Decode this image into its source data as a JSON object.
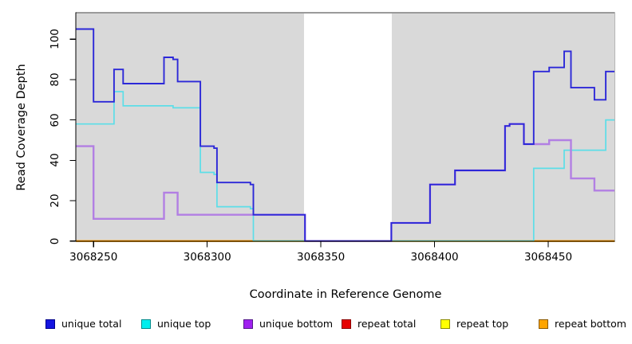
{
  "figure": {
    "title": "",
    "y_axis": {
      "label": "Read Coverage Depth",
      "ticks": [
        0,
        20,
        40,
        60,
        80,
        100
      ]
    },
    "x_axis": {
      "label": "Coordinate in Reference Genome",
      "ticks": [
        3068250,
        3068300,
        3068350,
        3068400,
        3068450
      ]
    },
    "legend": [
      {
        "label": "unique total",
        "fill": "#1414E0",
        "border": "#00008B"
      },
      {
        "label": "unique top",
        "fill": "#00EEEE",
        "border": "#008B8B"
      },
      {
        "label": "unique bottom",
        "fill": "#A020F0",
        "border": "#551A8B"
      },
      {
        "label": "repeat total",
        "fill": "#E60000",
        "border": "#8B0000"
      },
      {
        "label": "repeat top",
        "fill": "#FFFF00",
        "border": "#8B8B00"
      },
      {
        "label": "repeat bottom",
        "fill": "#FFA500",
        "border": "#8B5A00"
      }
    ]
  },
  "chart_data": {
    "type": "line",
    "subtype": "step",
    "title": "",
    "xlabel": "Coordinate in Reference Genome",
    "ylabel": "Read Coverage Depth",
    "xlim": [
      3068242.2,
      3068479.3
    ],
    "ylim": [
      0,
      113.3
    ],
    "panel_bg": "#D9D9D9",
    "page_bg": "#FFFFFF",
    "grid": "off",
    "legend_position": "bottom",
    "gap_region": {
      "x_start": 3068342.5,
      "x_end": 3068381.2,
      "color": "#FFFFFF",
      "note": "white no-data band over panel"
    },
    "series": [
      {
        "name": "repeat total",
        "color": "#E60000",
        "w": 2,
        "points": [
          [
            3068242.2,
            0
          ]
        ]
      },
      {
        "name": "repeat top",
        "color": "#FFFF00",
        "w": 2,
        "points": [
          [
            3068242.2,
            0
          ]
        ]
      },
      {
        "name": "repeat bottom",
        "color": "#FF9800",
        "w": 2.2,
        "points": [
          [
            3068242.2,
            0
          ]
        ]
      },
      {
        "name": "zero-overlap-blend",
        "color": "#8CC98A",
        "w": 1.8,
        "x_end": 3068443.6,
        "points": [
          [
            3068320.3,
            0
          ]
        ],
        "note": "cyan-at-zero over orange blend segment"
      },
      {
        "name": "unique top",
        "color": "#5CDEE8",
        "w": 1.7,
        "points": [
          [
            3068242.2,
            58
          ],
          [
            3068259,
            74
          ],
          [
            3068263,
            67
          ],
          [
            3068285,
            66
          ],
          [
            3068297,
            34
          ],
          [
            3068303,
            33
          ],
          [
            3068304.3,
            17
          ],
          [
            3068319,
            16
          ],
          [
            3068320.3,
            0
          ],
          [
            3068443.6,
            36
          ],
          [
            3068457,
            45
          ],
          [
            3068475.3,
            60
          ]
        ]
      },
      {
        "name": "unique bottom",
        "color": "#B27FE3",
        "w": 2.4,
        "points": [
          [
            3068242.2,
            47
          ],
          [
            3068250,
            11
          ],
          [
            3068281,
            24
          ],
          [
            3068287,
            13
          ],
          [
            3068343,
            0
          ],
          [
            3068381,
            9
          ],
          [
            3068398,
            28
          ],
          [
            3068409,
            35
          ],
          [
            3068431,
            57
          ],
          [
            3068433,
            58
          ],
          [
            3068439.3,
            48
          ],
          [
            3068450.4,
            50
          ],
          [
            3068460,
            31
          ],
          [
            3068470.3,
            25
          ]
        ]
      },
      {
        "name": "unique total",
        "color": "#2C28D8",
        "w": 1.9,
        "points": [
          [
            3068242.2,
            105
          ],
          [
            3068250,
            69
          ],
          [
            3068259,
            85
          ],
          [
            3068263,
            78
          ],
          [
            3068281,
            91
          ],
          [
            3068285,
            90
          ],
          [
            3068287,
            79
          ],
          [
            3068297,
            47
          ],
          [
            3068303,
            46
          ],
          [
            3068304.3,
            29
          ],
          [
            3068319,
            28
          ],
          [
            3068320.3,
            13
          ],
          [
            3068343,
            0
          ],
          [
            3068381,
            9
          ],
          [
            3068398,
            28
          ],
          [
            3068409,
            35
          ],
          [
            3068431,
            57
          ],
          [
            3068433,
            58
          ],
          [
            3068439.3,
            48
          ],
          [
            3068443.6,
            84
          ],
          [
            3068450.4,
            86
          ],
          [
            3068457,
            94
          ],
          [
            3068460,
            76
          ],
          [
            3068470.3,
            70
          ],
          [
            3068475.3,
            84
          ]
        ]
      }
    ]
  }
}
